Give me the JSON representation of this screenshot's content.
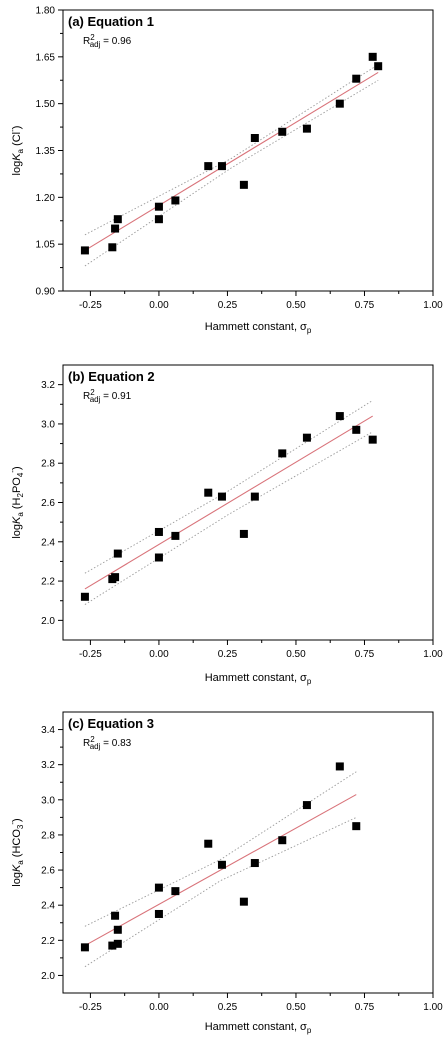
{
  "colors": {
    "fit_line": "#d9737a",
    "confidence_band": "#9a9a9a",
    "marker": "#000000",
    "axis": "#000000"
  },
  "chart_data": [
    {
      "type": "scatter",
      "panel": "(a)",
      "title": "Equation 1",
      "r2_label": "R",
      "r2_sup": "2",
      "r2_sub": "adj",
      "r2_value": "= 0.96",
      "ylabel": {
        "pre": "logK",
        "sub": "a",
        "paren_open": " (Cl",
        "sup": "-",
        "paren_close": ")"
      },
      "xlabel": {
        "text": "Hammett constant, σ",
        "sub": "p"
      },
      "xlim": [
        -0.35,
        1.0
      ],
      "ylim": [
        0.9,
        1.8
      ],
      "xticks": [
        "-0.25",
        "0.00",
        "0.25",
        "0.50",
        "0.75",
        "1.00"
      ],
      "yticks": [
        "0.90",
        "1.05",
        "1.20",
        "1.35",
        "1.50",
        "1.65",
        "1.80"
      ],
      "points": [
        {
          "x": -0.27,
          "y": 1.03
        },
        {
          "x": -0.17,
          "y": 1.04
        },
        {
          "x": -0.16,
          "y": 1.1
        },
        {
          "x": -0.15,
          "y": 1.13
        },
        {
          "x": 0.0,
          "y": 1.13
        },
        {
          "x": 0.0,
          "y": 1.17
        },
        {
          "x": 0.06,
          "y": 1.19
        },
        {
          "x": 0.18,
          "y": 1.3
        },
        {
          "x": 0.23,
          "y": 1.3
        },
        {
          "x": 0.31,
          "y": 1.24
        },
        {
          "x": 0.35,
          "y": 1.39
        },
        {
          "x": 0.45,
          "y": 1.41
        },
        {
          "x": 0.54,
          "y": 1.42
        },
        {
          "x": 0.66,
          "y": 1.5
        },
        {
          "x": 0.72,
          "y": 1.58
        },
        {
          "x": 0.78,
          "y": 1.65
        },
        {
          "x": 0.8,
          "y": 1.62
        }
      ],
      "fit": {
        "x": [
          -0.27,
          0.8
        ],
        "y": [
          1.03,
          1.6
        ]
      },
      "band_upper": {
        "x": [
          -0.27,
          0.265,
          0.8
        ],
        "y": [
          1.08,
          1.325,
          1.625
        ]
      },
      "band_lower": {
        "x": [
          -0.27,
          0.265,
          0.8
        ],
        "y": [
          0.98,
          1.295,
          1.575
        ]
      }
    },
    {
      "type": "scatter",
      "panel": "(b)",
      "title": "Equation 2",
      "r2_label": "R",
      "r2_sup": "2",
      "r2_sub": "adj",
      "r2_value": "= 0.91",
      "ylabel": {
        "pre": "logK",
        "sub": "a",
        "paren_open": " (H",
        "sub2": "2",
        "mid": "PO",
        "sub3": "4",
        "sup": "-",
        "paren_close": ")"
      },
      "xlabel": {
        "text": "Hammett constant, σ",
        "sub": "p"
      },
      "xlim": [
        -0.35,
        1.0
      ],
      "ylim": [
        1.9,
        3.3
      ],
      "xticks": [
        "-0.25",
        "0.00",
        "0.25",
        "0.50",
        "0.75",
        "1.00"
      ],
      "yticks": [
        "2.0",
        "2.2",
        "2.4",
        "2.6",
        "2.8",
        "3.0",
        "3.2"
      ],
      "points": [
        {
          "x": -0.27,
          "y": 2.12
        },
        {
          "x": -0.17,
          "y": 2.21
        },
        {
          "x": -0.16,
          "y": 2.22
        },
        {
          "x": -0.15,
          "y": 2.34
        },
        {
          "x": 0.0,
          "y": 2.45
        },
        {
          "x": 0.0,
          "y": 2.32
        },
        {
          "x": 0.06,
          "y": 2.43
        },
        {
          "x": 0.18,
          "y": 2.65
        },
        {
          "x": 0.23,
          "y": 2.63
        },
        {
          "x": 0.31,
          "y": 2.44
        },
        {
          "x": 0.35,
          "y": 2.63
        },
        {
          "x": 0.45,
          "y": 2.85
        },
        {
          "x": 0.54,
          "y": 2.93
        },
        {
          "x": 0.66,
          "y": 3.04
        },
        {
          "x": 0.72,
          "y": 2.97
        },
        {
          "x": 0.78,
          "y": 2.92
        }
      ],
      "fit": {
        "x": [
          -0.27,
          0.78
        ],
        "y": [
          2.16,
          3.04
        ]
      },
      "band_upper": {
        "x": [
          -0.27,
          0.255,
          0.78
        ],
        "y": [
          2.24,
          2.66,
          3.12
        ]
      },
      "band_lower": {
        "x": [
          -0.27,
          0.255,
          0.78
        ],
        "y": [
          2.08,
          2.54,
          2.96
        ]
      }
    },
    {
      "type": "scatter",
      "panel": "(c)",
      "title": "Equation 3",
      "r2_label": "R",
      "r2_sup": "2",
      "r2_sub": "adj",
      "r2_value": "= 0.83",
      "ylabel": {
        "pre": "logK",
        "sub": "a",
        "paren_open": " (HCO",
        "sub2": "3",
        "sup": "-",
        "paren_close": ")"
      },
      "xlabel": {
        "text": "Hammett constant, σ",
        "sub": "p"
      },
      "xlim": [
        -0.35,
        1.0
      ],
      "ylim": [
        1.9,
        3.5
      ],
      "xticks": [
        "-0.25",
        "0.00",
        "0.25",
        "0.50",
        "0.75",
        "1.00"
      ],
      "yticks": [
        "2.0",
        "2.2",
        "2.4",
        "2.6",
        "2.8",
        "3.0",
        "3.2",
        "3.4"
      ],
      "points": [
        {
          "x": -0.27,
          "y": 2.16
        },
        {
          "x": -0.17,
          "y": 2.17
        },
        {
          "x": -0.16,
          "y": 2.34
        },
        {
          "x": -0.15,
          "y": 2.26
        },
        {
          "x": -0.15,
          "y": 2.18
        },
        {
          "x": 0.0,
          "y": 2.5
        },
        {
          "x": 0.0,
          "y": 2.35
        },
        {
          "x": 0.06,
          "y": 2.48
        },
        {
          "x": 0.18,
          "y": 2.75
        },
        {
          "x": 0.23,
          "y": 2.63
        },
        {
          "x": 0.31,
          "y": 2.42
        },
        {
          "x": 0.35,
          "y": 2.64
        },
        {
          "x": 0.45,
          "y": 2.77
        },
        {
          "x": 0.54,
          "y": 2.97
        },
        {
          "x": 0.66,
          "y": 3.19
        },
        {
          "x": 0.72,
          "y": 2.85
        }
      ],
      "fit": {
        "x": [
          -0.27,
          0.72
        ],
        "y": [
          2.17,
          3.03
        ]
      },
      "band_upper": {
        "x": [
          -0.27,
          0.225,
          0.72
        ],
        "y": [
          2.28,
          2.66,
          3.16
        ]
      },
      "band_lower": {
        "x": [
          -0.27,
          0.225,
          0.72
        ],
        "y": [
          2.05,
          2.54,
          2.9
        ]
      }
    }
  ]
}
